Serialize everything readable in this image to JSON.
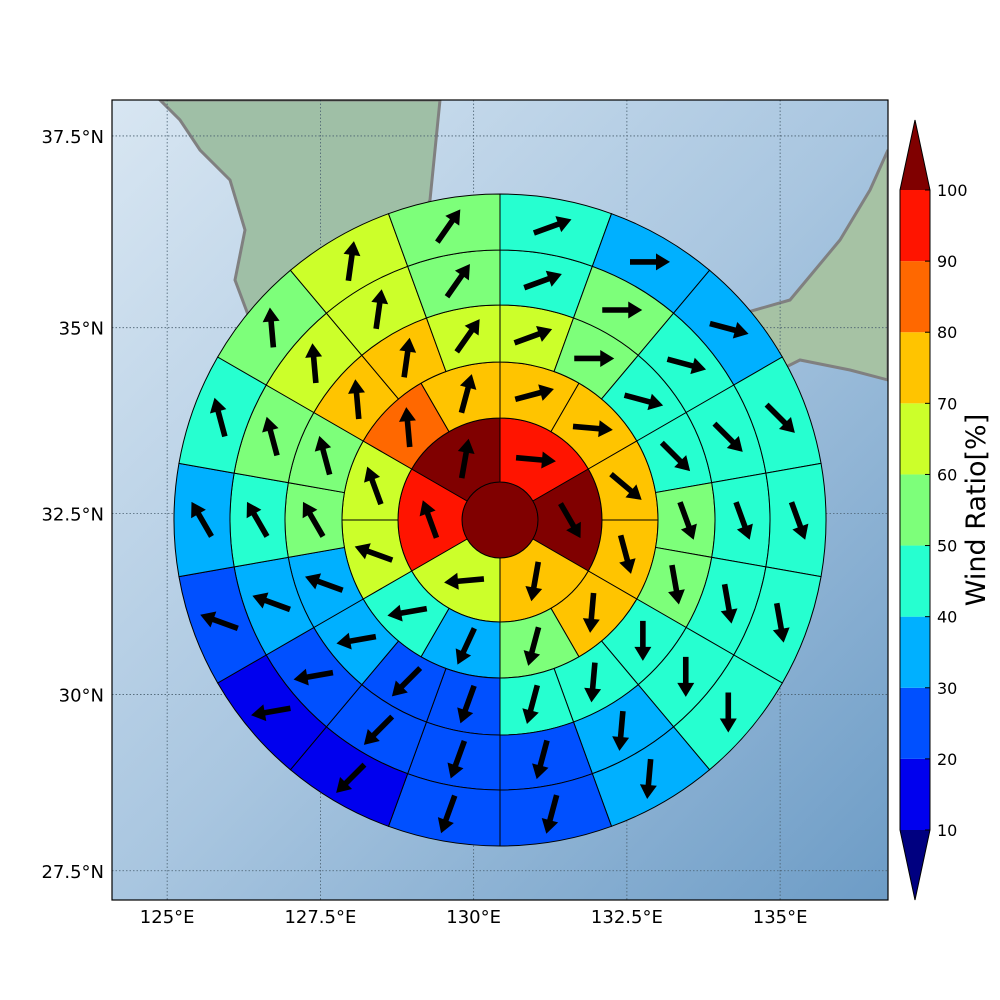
{
  "map": {
    "projection": "mercator",
    "xlim": [
      124.1,
      136.76
    ],
    "ylim": [
      27.08,
      37.96
    ],
    "xticks": [
      {
        "value": 125,
        "label": "125°E"
      },
      {
        "value": 127.5,
        "label": "127.5°E"
      },
      {
        "value": 130,
        "label": "130°E"
      },
      {
        "value": 132.5,
        "label": "132.5°E"
      },
      {
        "value": 135,
        "label": "135°E"
      }
    ],
    "yticks": [
      {
        "value": 27.5,
        "label": "27.5°N"
      },
      {
        "value": 30,
        "label": "30°N"
      },
      {
        "value": 32.5,
        "label": "32.5°N"
      },
      {
        "value": 35,
        "label": "35°N"
      },
      {
        "value": 37.5,
        "label": "37.5°N"
      }
    ],
    "grid": true,
    "colorbar": {
      "label": "Wind Ratio[%]",
      "ticks": [
        10,
        20,
        30,
        40,
        50,
        60,
        70,
        80,
        90,
        100
      ],
      "colors": [
        "#0000ee",
        "#0050ff",
        "#00b0ff",
        "#26ffd0",
        "#7dff7a",
        "#ccff2a",
        "#ffc400",
        "#ff6800",
        "#ff1400"
      ],
      "under": "#000080",
      "over": "#800000"
    },
    "rings": [
      {
        "values": [
          105
        ]
      },
      {
        "values": [
          95,
          105,
          75,
          65,
          95,
          105
        ],
        "directions": [
          95,
          150,
          190,
          265,
          340,
          10
        ]
      },
      {
        "values": [
          75,
          75,
          75,
          75,
          75,
          55,
          35,
          45,
          65,
          65,
          85,
          75
        ],
        "directions": [
          75,
          95,
          130,
          165,
          185,
          195,
          205,
          260,
          290,
          340,
          355,
          15
        ]
      },
      {
        "values": [
          65,
          55,
          45,
          45,
          55,
          55,
          45,
          45,
          45,
          25,
          25,
          35,
          35,
          55,
          55,
          75,
          75,
          65
        ],
        "directions": [
          70,
          90,
          105,
          135,
          160,
          170,
          180,
          185,
          195,
          200,
          225,
          260,
          290,
          330,
          345,
          355,
          8,
          35
        ]
      },
      {
        "values": [
          45,
          55,
          45,
          45,
          45,
          45,
          45,
          35,
          25,
          25,
          25,
          25,
          35,
          45,
          55,
          65,
          65,
          55
        ],
        "directions": [
          70,
          90,
          105,
          135,
          160,
          170,
          180,
          185,
          195,
          200,
          225,
          260,
          290,
          330,
          345,
          355,
          8,
          35
        ]
      },
      {
        "values": [
          45,
          35,
          35,
          45,
          45,
          45,
          45,
          35,
          25,
          25,
          15,
          15,
          25,
          35,
          45,
          55,
          65,
          55
        ],
        "directions": [
          70,
          90,
          105,
          135,
          160,
          170,
          180,
          185,
          195,
          200,
          225,
          260,
          290,
          330,
          345,
          355,
          8,
          35
        ]
      }
    ]
  }
}
